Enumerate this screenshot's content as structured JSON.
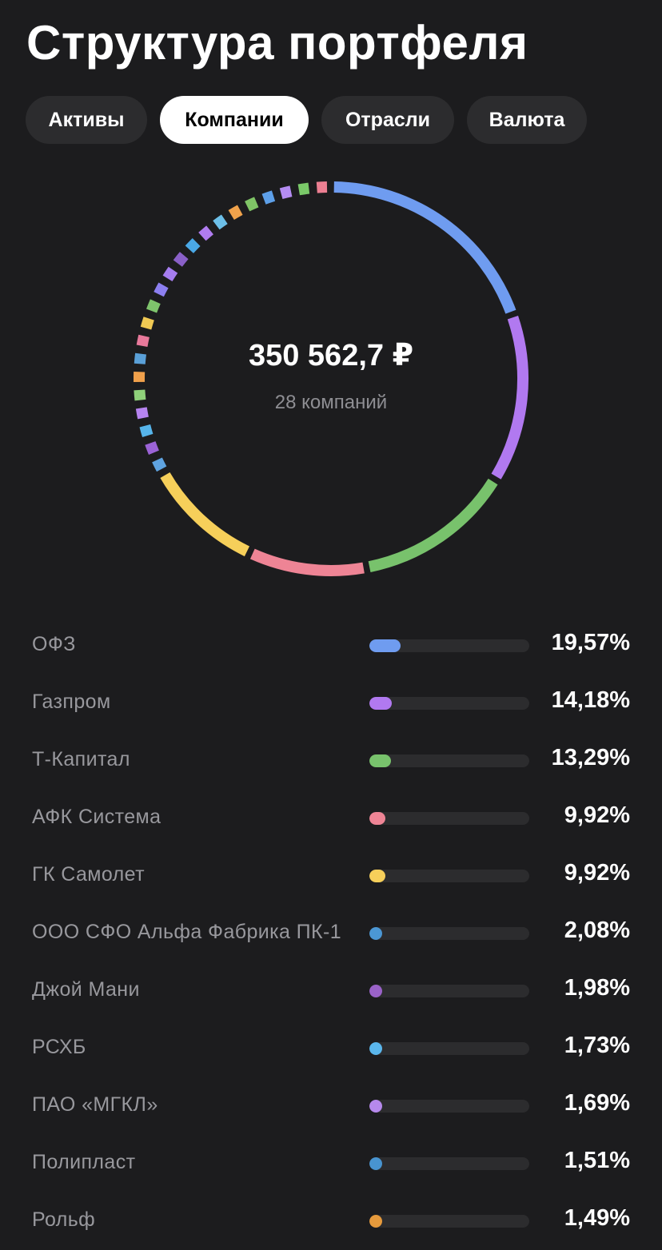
{
  "header": {
    "title": "Структура портфеля"
  },
  "tabs": [
    {
      "label": "Активы",
      "active": false
    },
    {
      "label": "Компании",
      "active": true
    },
    {
      "label": "Отрасли",
      "active": false
    },
    {
      "label": "Валюта",
      "active": false
    }
  ],
  "summary": {
    "total": "350 562,7 ₽",
    "count_label": "28 компаний"
  },
  "donut": {
    "small_segment_colors": [
      "#5fa3e0",
      "#9b63d6",
      "#56b4ea",
      "#b684f0",
      "#8fd17a",
      "#f0a04b",
      "#5aa0d8",
      "#e8799b",
      "#f0c953",
      "#7ec36c",
      "#8c7ff0",
      "#a67df0",
      "#8a60c8",
      "#4aa8e6",
      "#b07cf0",
      "#6cbfe8",
      "#f0a24b",
      "#7fc466",
      "#5d9fe8",
      "#b48cf2",
      "#7ac969",
      "#ec7f92"
    ]
  },
  "companies": [
    {
      "name": "ОФЗ",
      "percent": "19,57%",
      "value": 19.57,
      "color": "#6f9cf0"
    },
    {
      "name": "Газпром",
      "percent": "14,18%",
      "value": 14.18,
      "color": "#b179f0"
    },
    {
      "name": "Т-Капитал",
      "percent": "13,29%",
      "value": 13.29,
      "color": "#78c26c"
    },
    {
      "name": "АФК Система",
      "percent": "9,92%",
      "value": 9.92,
      "color": "#ee8495"
    },
    {
      "name": "ГК Самолет",
      "percent": "9,92%",
      "value": 9.92,
      "color": "#f6cf5a"
    },
    {
      "name": "ООО СФО Альфа Фабрика ПК-1",
      "percent": "2,08%",
      "value": 2.08,
      "color": "#4b97d4"
    },
    {
      "name": "Джой Мани",
      "percent": "1,98%",
      "value": 1.98,
      "color": "#9a62c8"
    },
    {
      "name": "РСХБ",
      "percent": "1,73%",
      "value": 1.73,
      "color": "#5ab6ec"
    },
    {
      "name": "ПАО «МГКЛ»",
      "percent": "1,69%",
      "value": 1.69,
      "color": "#b689ec"
    },
    {
      "name": "Полипласт",
      "percent": "1,51%",
      "value": 1.51,
      "color": "#4894d0"
    },
    {
      "name": "Рольф",
      "percent": "1,49%",
      "value": 1.49,
      "color": "#e69a3c"
    }
  ]
}
